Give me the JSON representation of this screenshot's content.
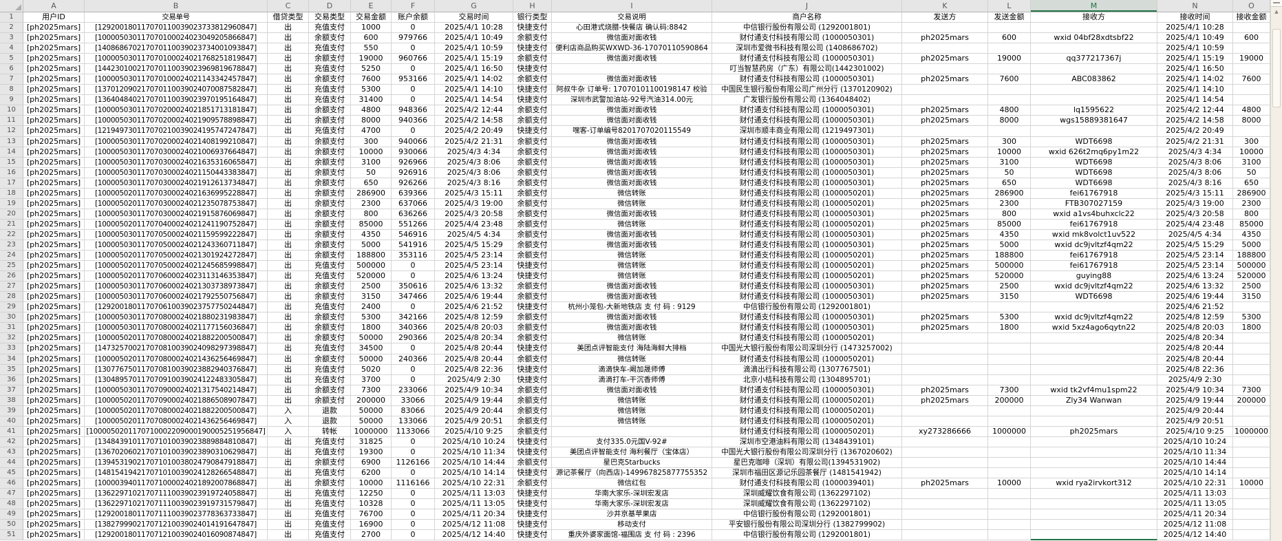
{
  "colors": {
    "accent_green": "#217346",
    "grid_line": "#D5D5D5",
    "row_header_bg": "#E6E6E6",
    "selected_letter_bg": "#D5DBD7",
    "scrollbar_track": "#F3EFE6"
  },
  "scrollbar": {
    "up_arrow": "▲"
  },
  "sheet": {
    "selected_column": "M",
    "column_letters": [
      "A",
      "B",
      "C",
      "D",
      "E",
      "F",
      "G",
      "H",
      "I",
      "J",
      "K",
      "L",
      "M",
      "N",
      "O"
    ],
    "header_labels": [
      "用户ID",
      "交易单号",
      "借贷类型",
      "交易类型",
      "交易金额",
      "账户余额",
      "交易时间",
      "银行类型",
      "交易说明",
      "商户名称",
      "发送方",
      "发送金额",
      "接收方",
      "接收时间",
      "接收金额"
    ],
    "rows": [
      [
        "[ph2025mars]",
        "[129200180117070110039023733812960847]",
        "出",
        "充值支付",
        "1000",
        "0",
        "2025/4/1 10:28",
        "快捷支付",
        "心田港式烧腊-快餐店 确认码:8842",
        "中信银行股份有限公司 (1292001801)",
        "",
        "",
        "",
        "2025/4/1 10:28",
        ""
      ],
      [
        "[ph2025mars]",
        "[100005030117070100024023049205866847]",
        "出",
        "余额支付",
        "600",
        "979766",
        "2025/4/1 10:49",
        "余额支付",
        "微信面对面收钱",
        "财付通支付科技有限公司 (1000050301)",
        "ph2025mars",
        "600",
        "wxid 04bf28xdtsbf22",
        "2025/4/1 10:49",
        "600"
      ],
      [
        "[ph2025mars]",
        "[140868670217070110039023734001093847]",
        "出",
        "充值支付",
        "550",
        "0",
        "2025/4/1 10:59",
        "快捷支付",
        "便利店商品购买WXWD-36-17070110590864",
        "深圳市爱微书科技有限公司 (1408686702)",
        "",
        "",
        "",
        "2025/4/1 10:59",
        ""
      ],
      [
        "[ph2025mars]",
        "[100005030117070100024021768251819847]",
        "出",
        "余额支付",
        "19000",
        "960766",
        "2025/4/1 15:19",
        "余额支付",
        "微信面对面收钱",
        "财付通支付科技有限公司 (1000050301)",
        "ph2025mars",
        "19000",
        "qq377217367j",
        "2025/4/1 15:19",
        "19000"
      ],
      [
        "[ph2025mars]",
        "[144230100217070110039023969819678847]",
        "出",
        "充值支付",
        "5250",
        "0",
        "2025/4/1 16:50",
        "快捷支付",
        "",
        "叮当智慧药房（广东）有限公司(1442301002)",
        "",
        "",
        "",
        "2025/4/1 16:50",
        ""
      ],
      [
        "[ph2025mars]",
        "[100005030117070100024021143342457847]",
        "出",
        "余额支付",
        "7600",
        "953166",
        "2025/4/1 14:02",
        "余额支付",
        "微信面对面收钱",
        "财付通支付科技有限公司 (1000050301)",
        "ph2025mars",
        "7600",
        "ABC083862",
        "2025/4/1 14:02",
        "7600"
      ],
      [
        "[ph2025mars]",
        "[137012090217070110039024070087582847]",
        "出",
        "充值支付",
        "5300",
        "0",
        "2025/4/1 14:10",
        "快捷支付",
        "阿叔牛杂 订单号: 17070101100198147 校验",
        "中国民生银行股份有限公司广州分行 (1370120902)",
        "",
        "",
        "",
        "2025/4/1 14:10",
        ""
      ],
      [
        "[ph2025mars]",
        "[136404840217070110039023970195164847]",
        "出",
        "充值支付",
        "31400",
        "0",
        "2025/4/1 14:54",
        "快捷支付",
        "深圳市武警加油站-92号汽油314.00元",
        "广发银行股份有限公司 (1364048402)",
        "",
        "",
        "",
        "2025/4/1 14:54",
        ""
      ],
      [
        "[ph2025mars]",
        "[100005030117070200024021851713181847]",
        "出",
        "余额支付",
        "4800",
        "948366",
        "2025/4/2 12:44",
        "余额支付",
        "微信面对面收钱",
        "财付通支付科技有限公司 (1000050301)",
        "ph2025mars",
        "4800",
        "lq1595622",
        "2025/4/2 12:44",
        "4800"
      ],
      [
        "[ph2025mars]",
        "[100005030117070200024021909578898847]",
        "出",
        "余额支付",
        "8000",
        "940366",
        "2025/4/2 14:58",
        "余额支付",
        "微信面对面收钱",
        "财付通支付科技有限公司 (1000050301)",
        "ph2025mars",
        "8000",
        "wgs15889381647",
        "2025/4/2 14:58",
        "8000"
      ],
      [
        "[ph2025mars]",
        "[121949730117070210039024195747247847]",
        "出",
        "充值支付",
        "4700",
        "0",
        "2025/4/2 20:49",
        "快捷支付",
        "嘿客-订单编号8201707020115549",
        "深圳市顺丰商业有限公司 (1219497301)",
        "",
        "",
        "",
        "2025/4/2 20:49",
        ""
      ],
      [
        "[ph2025mars]",
        "[100005030117070200024021408199210847]",
        "出",
        "余额支付",
        "300",
        "940066",
        "2025/4/2 21:31",
        "余额支付",
        "微信面对面收钱",
        "财付通支付科技有限公司 (1000050301)",
        "ph2025mars",
        "300",
        "WDT6698",
        "2025/4/2 21:31",
        "300"
      ],
      [
        "[ph2025mars]",
        "[100005030117070300024021006937664847]",
        "出",
        "余额支付",
        "10000",
        "930066",
        "2025/4/3 4:34",
        "余额支付",
        "微信面对面收钱",
        "财付通支付科技有限公司 (1000050301)",
        "ph2025mars",
        "10000",
        "wxid 626t2mq6py1m22",
        "2025/4/3 4:34",
        "10000"
      ],
      [
        "[ph2025mars]",
        "[100005030117070300024021635316065847]",
        "出",
        "余额支付",
        "3100",
        "926966",
        "2025/4/3 8:06",
        "余额支付",
        "微信面对面收钱",
        "财付通支付科技有限公司 (1000050301)",
        "ph2025mars",
        "3100",
        "WDT6698",
        "2025/4/3 8:06",
        "3100"
      ],
      [
        "[ph2025mars]",
        "[100005030117070300024021150443383847]",
        "出",
        "余额支付",
        "50",
        "926916",
        "2025/4/3 8:06",
        "余额支付",
        "微信面对面收钱",
        "财付通支付科技有限公司 (1000050301)",
        "ph2025mars",
        "50",
        "WDT6698",
        "2025/4/3 8:06",
        "50"
      ],
      [
        "[ph2025mars]",
        "[100005030117070300024021912613734847]",
        "出",
        "余额支付",
        "650",
        "926266",
        "2025/4/3 8:16",
        "余额支付",
        "微信面对面收钱",
        "财付通支付科技有限公司 (1000050301)",
        "ph2025mars",
        "650",
        "WDT6698",
        "2025/4/3 8:16",
        "650"
      ],
      [
        "[ph2025mars]",
        "[100005020117070300024021636995228847]",
        "出",
        "余额支付",
        "286900",
        "639366",
        "2025/4/3 15:11",
        "余额支付",
        "微信转账",
        "财付通支付科技有限公司 (1000050201)",
        "ph2025mars",
        "286900",
        "fei61767918",
        "2025/4/3 15:11",
        "286900"
      ],
      [
        "[ph2025mars]",
        "[100005020117070300024021235078753847]",
        "出",
        "余额支付",
        "2300",
        "637066",
        "2025/4/3 19:00",
        "余额支付",
        "微信转账",
        "财付通支付科技有限公司 (1000050201)",
        "ph2025mars",
        "2300",
        "FTB307027159",
        "2025/4/3 19:00",
        "2300"
      ],
      [
        "[ph2025mars]",
        "[100005030117070300024021915876069847]",
        "出",
        "余额支付",
        "800",
        "636266",
        "2025/4/3 20:58",
        "余额支付",
        "微信面对面收钱",
        "财付通支付科技有限公司 (1000050301)",
        "ph2025mars",
        "800",
        "wxid a1vs4buhxclc22",
        "2025/4/3 20:58",
        "800"
      ],
      [
        "[ph2025mars]",
        "[100005020117070400024021241190752847]",
        "出",
        "余额支付",
        "85000",
        "551266",
        "2025/4/4 23:48",
        "余额支付",
        "微信转账",
        "财付通支付科技有限公司 (1000050201)",
        "ph2025mars",
        "85000",
        "fei61767918",
        "2025/4/4 23:48",
        "85000"
      ],
      [
        "[ph2025mars]",
        "[100005030117070500024021159599222847]",
        "出",
        "余额支付",
        "4350",
        "546916",
        "2025/4/5 4:34",
        "余额支付",
        "微信面对面收钱",
        "财付通支付科技有限公司 (1000050301)",
        "ph2025mars",
        "4350",
        "wxid mk8volct1uv522",
        "2025/4/5 4:34",
        "4350"
      ],
      [
        "[ph2025mars]",
        "[100005030117070500024021243360711847]",
        "出",
        "余额支付",
        "5000",
        "541916",
        "2025/4/5 15:29",
        "余额支付",
        "微信面对面收钱",
        "财付通支付科技有限公司 (1000050301)",
        "ph2025mars",
        "5000",
        "wxid dc9jvltzf4qm22",
        "2025/4/5 15:29",
        "5000"
      ],
      [
        "[ph2025mars]",
        "[100005020117070500024021301924272847]",
        "出",
        "余额支付",
        "188800",
        "353116",
        "2025/4/5 23:14",
        "余额支付",
        "微信转账",
        "财付通支付科技有限公司 (1000050201)",
        "ph2025mars",
        "188800",
        "fei61767918",
        "2025/4/5 23:14",
        "188800"
      ],
      [
        "[ph2025mars]",
        "[100005020117070500024021245685998847]",
        "出",
        "充值支付",
        "500000",
        "0",
        "2025/4/5 23:14",
        "快捷支付",
        "微信转账",
        "财付通支付科技有限公司 (1000050201)",
        "ph2025mars",
        "500000",
        "fei61767918",
        "2025/4/5 23:14",
        "500000"
      ],
      [
        "[ph2025mars]",
        "[100005020117070600024023113146353847]",
        "出",
        "充值支付",
        "520000",
        "0",
        "2025/4/6 13:24",
        "快捷支付",
        "微信转账",
        "财付通支付科技有限公司 (1000050201)",
        "ph2025mars",
        "520000",
        "guying88",
        "2025/4/6 13:24",
        "520000"
      ],
      [
        "[ph2025mars]",
        "[100005030117070600024021303738973847]",
        "出",
        "余额支付",
        "2500",
        "350616",
        "2025/4/6 13:32",
        "余额支付",
        "微信面对面收钱",
        "财付通支付科技有限公司 (1000050301)",
        "ph2025mars",
        "2500",
        "wxid dc9jvltzf4qm22",
        "2025/4/6 13:32",
        "2500"
      ],
      [
        "[ph2025mars]",
        "[100005030117070600024021792550756847]",
        "出",
        "余额支付",
        "3150",
        "347466",
        "2025/4/6 19:44",
        "余额支付",
        "微信面对面收钱",
        "财付通支付科技有限公司 (1000050301)",
        "ph2025mars",
        "3150",
        "WDT6698",
        "2025/4/6 19:44",
        "3150"
      ],
      [
        "[ph2025mars]",
        "[129200180117070610039023757750244847]",
        "出",
        "充值支付",
        "2400",
        "0",
        "2025/4/6 21:52",
        "快捷支付",
        "杭州小笼包-大新地铁店 支 付 码 : 9129",
        "中信银行股份有限公司 (1292001801)",
        "",
        "",
        "",
        "2025/4/6 21:52",
        ""
      ],
      [
        "[ph2025mars]",
        "[100005030117070800024021880231983847]",
        "出",
        "余额支付",
        "5300",
        "342166",
        "2025/4/8 12:59",
        "余额支付",
        "微信面对面收钱",
        "财付通支付科技有限公司 (1000050301)",
        "ph2025mars",
        "5300",
        "wxid dc9jvltzf4qm22",
        "2025/4/8 12:59",
        "5300"
      ],
      [
        "[ph2025mars]",
        "[100005030117070800024021177156036847]",
        "出",
        "余额支付",
        "1800",
        "340366",
        "2025/4/8 20:03",
        "余额支付",
        "微信面对面收钱",
        "财付通支付科技有限公司 (1000050301)",
        "ph2025mars",
        "1800",
        "wxid 5xz4ago6qytn22",
        "2025/4/8 20:03",
        "1800"
      ],
      [
        "[ph2025mars]",
        "[100005020117070800024021882200500847]",
        "出",
        "余额支付",
        "50000",
        "290366",
        "2025/4/8 20:34",
        "余额支付",
        "微信转账",
        "财付通支付科技有限公司 (1000050201)",
        "",
        "",
        "",
        "2025/4/8 20:34",
        ""
      ],
      [
        "[ph2025mars]",
        "[147325700217070810039024098297398847]",
        "出",
        "充值支付",
        "34500",
        "0",
        "2025/4/8 20:44",
        "快捷支付",
        "美团点评智能支付 海陆海鲜大排档",
        "中国光大银行股份有限公司深圳分行 (1473257002)",
        "",
        "",
        "",
        "2025/4/8 20:44",
        ""
      ],
      [
        "[ph2025mars]",
        "[100005020117070800024021436256469847]",
        "出",
        "余额支付",
        "50000",
        "240366",
        "2025/4/8 20:44",
        "余额支付",
        "微信转账",
        "财付通支付科技有限公司 (1000050201)",
        "",
        "",
        "",
        "2025/4/8 20:44",
        ""
      ],
      [
        "[ph2025mars]",
        "[130776750117070810039023882940376847]",
        "出",
        "充值支付",
        "5020",
        "0",
        "2025/4/8 22:36",
        "快捷支付",
        "滴滴快车-阚加晟师傅",
        "滴滴出行科技有限公司 (1307767501)",
        "",
        "",
        "",
        "2025/4/8 22:36",
        ""
      ],
      [
        "[ph2025mars]",
        "[130489570117070910039024122483305847]",
        "出",
        "充值支付",
        "3700",
        "0",
        "2025/4/9 2:30",
        "快捷支付",
        "滴滴打车-干沉香师傅",
        "北京小桔科技有限公司 (1304895701)",
        "",
        "",
        "",
        "2025/4/9 2:30",
        ""
      ],
      [
        "[ph2025mars]",
        "[100005030117070900024021317540214847]",
        "出",
        "余额支付",
        "7300",
        "233066",
        "2025/4/9 10:34",
        "余额支付",
        "微信面对面收钱",
        "财付通支付科技有限公司 (1000050301)",
        "ph2025mars",
        "7300",
        "wxid tk2vf4mu1spm22",
        "2025/4/9 10:34",
        "7300"
      ],
      [
        "[ph2025mars]",
        "[100005020117070900024021886508907847]",
        "出",
        "余额支付",
        "200000",
        "33066",
        "2025/4/9 19:44",
        "余额支付",
        "微信转账",
        "财付通支付科技有限公司 (1000050201)",
        "ph2025mars",
        "200000",
        "Zly34 Wanwan",
        "2025/4/9 19:44",
        "200000"
      ],
      [
        "[ph2025mars]",
        "[100005020117070800024021882200500847]",
        "入",
        "退款",
        "50000",
        "83066",
        "2025/4/9 20:44",
        "余额支付",
        "微信转账",
        "财付通支付科技有限公司 (1000050201)",
        "",
        "",
        "",
        "2025/4/9 20:44",
        ""
      ],
      [
        "[ph2025mars]",
        "[100005020117070800024021436256469847]",
        "入",
        "退款",
        "50000",
        "133066",
        "2025/4/9 20:51",
        "余额支付",
        "微信转账",
        "财付通支付科技有限公司 (1000050201)",
        "",
        "",
        "",
        "2025/4/9 20:51",
        ""
      ],
      [
        "[ph2025mars]",
        "[1000050201170710002209000190005251956847]",
        "入",
        "转帐",
        "1000000",
        "1133066",
        "2025/4/10 9:25",
        "余额支付",
        "",
        "财付通支付科技有限公司 (1000050201)",
        "xy273286666",
        "1000000",
        "ph2025mars",
        "2025/4/10 9:25",
        "1000000"
      ],
      [
        "[ph2025mars]",
        "[134843910117071010039023889884810847]",
        "出",
        "充值支付",
        "31825",
        "0",
        "2025/4/10 10:24",
        "快捷支付",
        "支付335.0元国V-92#",
        "深圳市空港油料有限公司 (1348439101)",
        "",
        "",
        "",
        "2025/4/10 10:24",
        ""
      ],
      [
        "[ph2025mars]",
        "[136702060217071010039023890310629847]",
        "出",
        "充值支付",
        "19300",
        "0",
        "2025/4/10 11:34",
        "快捷支付",
        "美团点评智能支付 海利餐厅（宝体店）",
        "中国光大银行股份有限公司深圳分行 (1367020602)",
        "",
        "",
        "",
        "2025/4/10 11:34",
        ""
      ],
      [
        "[ph2025mars]",
        "[139453190217071010038024790847918847]",
        "出",
        "余额支付",
        "6900",
        "1126166",
        "2025/4/10 14:44",
        "余额支付",
        "星巴克Starbucks",
        "星巴克咖啡（深圳）有限公司(1394531902)",
        "",
        "",
        "",
        "2025/4/10 14:44",
        ""
      ],
      [
        "[ph2025mars]",
        "[148154194217071010039024128266548847]",
        "出",
        "充值支付",
        "6200",
        "0",
        "2025/4/10 14:14",
        "快捷支付",
        "源记茶餐厅（向西店)-149967825877755352",
        "深圳市福田区源记乐园茶餐厅 (1481541942)",
        "",
        "",
        "",
        "2025/4/10 14:14",
        ""
      ],
      [
        "[ph2025mars]",
        "[100003940117071000024021892007868847]",
        "出",
        "余额支付",
        "10000",
        "1116166",
        "2025/4/10 22:31",
        "余额支付",
        "微信红包",
        "财付通支付科技有限公司 (1000039401)",
        "ph2025mars",
        "10000",
        "wxid rya2irvkort312",
        "2025/4/10 22:31",
        "10000"
      ],
      [
        "[ph2025mars]",
        "[136229710217071110039023919724058847]",
        "出",
        "充值支付",
        "12250",
        "0",
        "2025/4/11 13:03",
        "快捷支付",
        "华南大家乐-深圳宏发店",
        "深圳威耀饮食有限公司 (1362297102)",
        "",
        "",
        "",
        "2025/4/11 13:03",
        ""
      ],
      [
        "[ph2025mars]",
        "[136229710217071110039023919731579847]",
        "出",
        "充值支付",
        "10328",
        "0",
        "2025/4/11 13:05",
        "快捷支付",
        "华南大家乐-深圳宏发店",
        "深圳威耀饮食有限公司 (1362297102)",
        "",
        "",
        "",
        "2025/4/11 13:05",
        ""
      ],
      [
        "[ph2025mars]",
        "[129200180117071110039023778363733847]",
        "出",
        "充值支付",
        "76700",
        "0",
        "2025/4/11 20:34",
        "快捷支付",
        "沙井京基苹果店",
        "中信银行股份有限公司 (1292001801)",
        "",
        "",
        "",
        "2025/4/11 20:34",
        ""
      ],
      [
        "[ph2025mars]",
        "[138279990217071210039024014191647847]",
        "出",
        "充值支付",
        "16900",
        "0",
        "2025/4/12 11:08",
        "快捷支付",
        "移动支付",
        "平安银行股份有限公司深圳分行 (1382799902)",
        "",
        "",
        "",
        "2025/4/12 11:08",
        ""
      ],
      [
        "[ph2025mars]",
        "[129200180117071210039024016090874847]",
        "出",
        "充值支付",
        "2700",
        "0",
        "2025/4/12 14:40",
        "快捷支付",
        "重庆外婆家面馆-福围店 支 付 码 : 2396",
        "中信银行股份有限公司 (1292001801)",
        "",
        "",
        "",
        "2025/4/12 14:40",
        ""
      ]
    ]
  }
}
